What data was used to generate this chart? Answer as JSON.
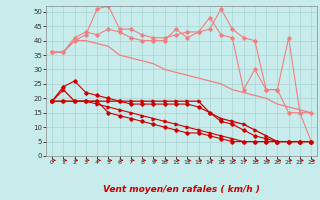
{
  "xlabel": "Vent moyen/en rafales ( km/h )",
  "x": [
    0,
    1,
    2,
    3,
    4,
    5,
    6,
    7,
    8,
    9,
    10,
    11,
    12,
    13,
    14,
    15,
    16,
    17,
    18,
    19,
    20,
    21,
    22,
    23
  ],
  "line1": [
    36,
    36,
    40,
    40,
    39,
    38,
    35,
    34,
    33,
    32,
    30,
    29,
    28,
    27,
    26,
    25,
    23,
    22,
    21,
    20,
    18,
    17,
    16,
    15
  ],
  "line2": [
    36,
    36,
    41,
    43,
    42,
    44,
    43,
    41,
    40,
    40,
    40,
    44,
    41,
    43,
    48,
    42,
    41,
    23,
    30,
    23,
    23,
    15,
    15,
    15
  ],
  "line3": [
    36,
    36,
    40,
    42,
    51,
    52,
    44,
    44,
    42,
    41,
    41,
    42,
    43,
    43,
    44,
    51,
    44,
    41,
    40,
    23,
    23,
    41,
    15,
    5
  ],
  "line4": [
    19,
    23,
    19,
    19,
    19,
    19,
    19,
    19,
    19,
    19,
    19,
    19,
    19,
    19,
    15,
    13,
    12,
    11,
    9,
    7,
    5,
    5,
    5,
    5
  ],
  "line5": [
    19,
    24,
    26,
    22,
    21,
    20,
    19,
    18,
    18,
    18,
    18,
    18,
    18,
    17,
    15,
    12,
    11,
    9,
    7,
    6,
    5,
    5,
    5,
    5
  ],
  "line6": [
    19,
    19,
    19,
    19,
    19,
    15,
    14,
    13,
    12,
    11,
    10,
    9,
    8,
    8,
    7,
    6,
    5,
    5,
    5,
    5,
    5,
    5,
    5,
    5
  ],
  "line7": [
    19,
    19,
    19,
    19,
    18,
    17,
    16,
    15,
    14,
    13,
    12,
    11,
    10,
    9,
    8,
    7,
    6,
    5,
    5,
    5,
    5,
    5,
    5,
    5
  ],
  "ylim": [
    0,
    52
  ],
  "yticks": [
    0,
    5,
    10,
    15,
    20,
    25,
    30,
    35,
    40,
    45,
    50
  ],
  "bg_color": "#c8ecec",
  "grid_color": "#aad4d4",
  "color_light": "#f08080",
  "color_dark": "#cc0000",
  "arrow_angles": [
    0,
    0,
    0,
    10,
    10,
    10,
    10,
    10,
    10,
    20,
    20,
    20,
    20,
    30,
    30,
    45,
    45,
    60,
    60,
    75,
    90,
    90,
    135,
    135
  ]
}
